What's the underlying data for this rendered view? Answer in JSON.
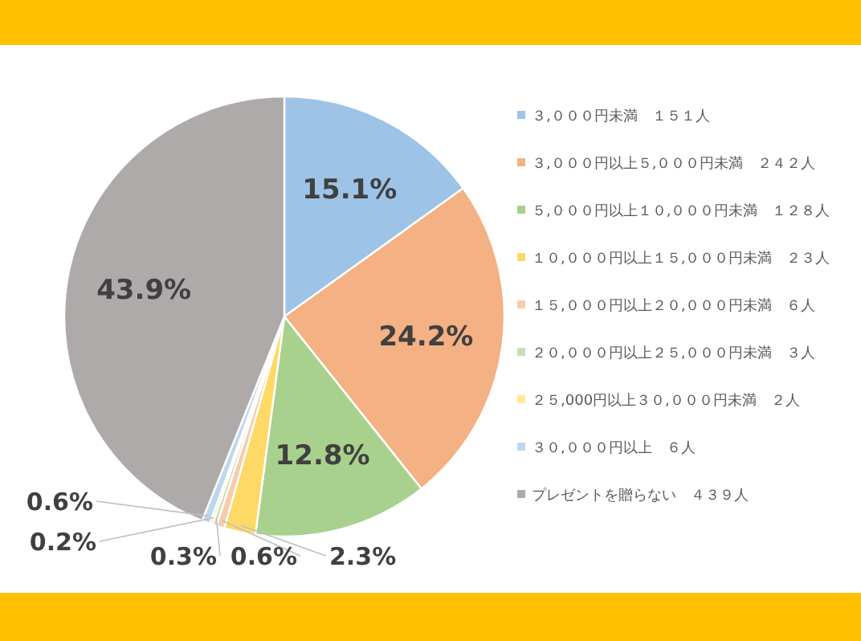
{
  "chart_data": {
    "type": "pie",
    "categories": [
      "３,０００円未満　１５１人",
      "３,０００円以上５,０００円未満　２４２人",
      "５,０００円以上１０,０００円未満　１２８人",
      "１０,０００円以上１５,０００円未満　２３人",
      "１５,０００円以上２０,０００円未満　６人",
      "２０,０００円以上２５,０００円未満　３人",
      "２５,000円以上３０,０００円未満　２人",
      "３０,０００円以上　６人",
      "プレゼントを贈らない　４３９人"
    ],
    "values": [
      15.1,
      24.2,
      12.8,
      2.3,
      0.6,
      0.3,
      0.2,
      0.6,
      43.9
    ],
    "value_labels": [
      "15.1%",
      "24.2%",
      "12.8%",
      "2.3%",
      "0.6%",
      "0.3%",
      "0.2%",
      "0.6%",
      "43.9%"
    ],
    "colors": [
      "#9dc3e6",
      "#f4b183",
      "#a9d18e",
      "#ffd966",
      "#f8cbad",
      "#c5e0b4",
      "#ffe699",
      "#bdd7ee",
      "#aeaaaa"
    ],
    "legend": "right"
  }
}
